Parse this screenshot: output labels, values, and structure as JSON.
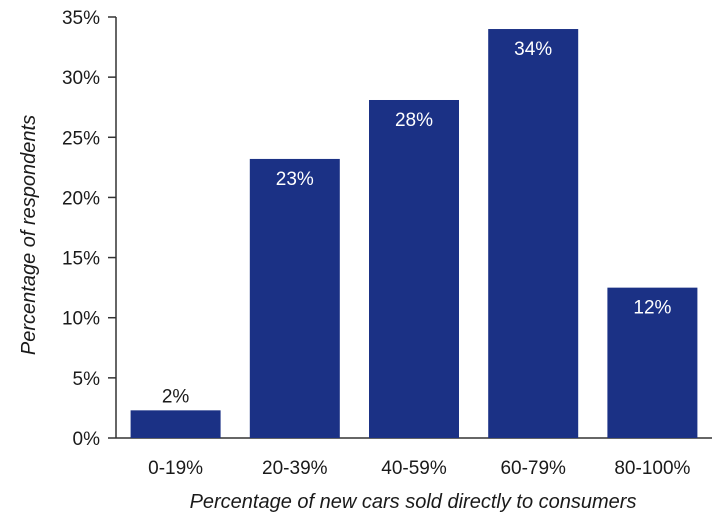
{
  "chart_data": {
    "type": "bar",
    "categories": [
      "0-19%",
      "20-39%",
      "40-59%",
      "60-79%",
      "80-100%"
    ],
    "values": [
      2.3,
      23.2,
      28.1,
      34.0,
      12.5
    ],
    "data_labels": [
      "2%",
      "23%",
      "28%",
      "34%",
      "12%"
    ],
    "xlabel": "Percentage of new cars sold directly to consumers",
    "ylabel": "Percentage of respondents",
    "ylim": [
      0,
      35
    ],
    "yticks": [
      0,
      5,
      10,
      15,
      20,
      25,
      30,
      35
    ],
    "ytick_labels": [
      "0%",
      "5%",
      "10%",
      "15%",
      "20%",
      "25%",
      "30%",
      "35%"
    ],
    "grid": false,
    "bar_color": "#1b3185",
    "label_inside_color": "#ffffff",
    "label_outside_color": "#1a1a1a"
  }
}
